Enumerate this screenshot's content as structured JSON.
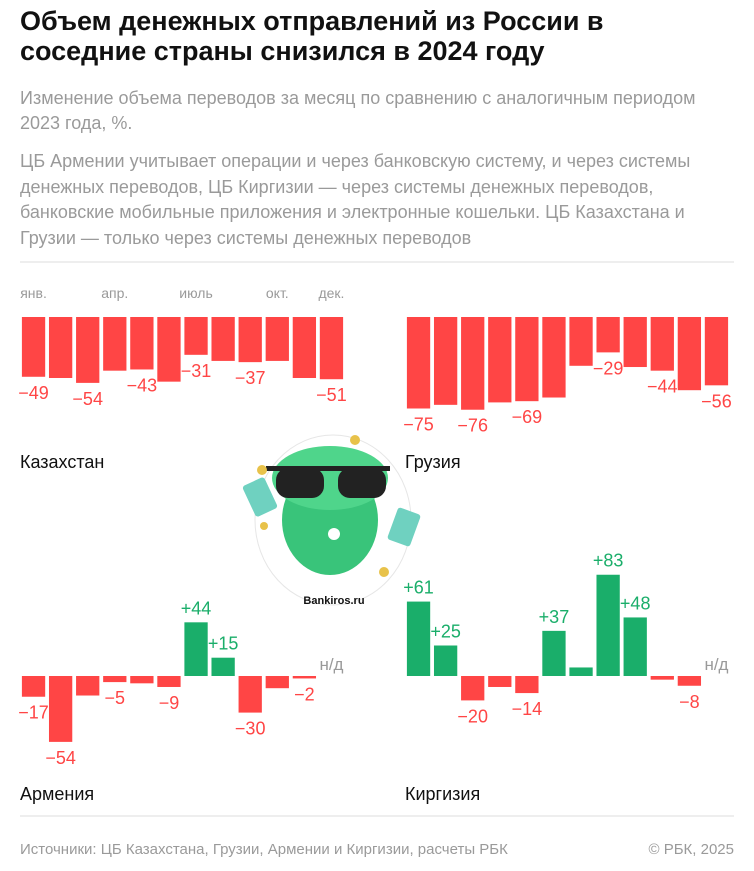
{
  "title": "Объем денежных отправлений из России в соседние страны снизился в 2024 году",
  "subtitle": "Изменение объема переводов за месяц по сравнению с аналогичным периодом 2023 года, %.",
  "note": "ЦБ Армении учитывает операции и через банковскую систему, и через системы денежных переводов, ЦБ Киргизии — через системы денежных переводов, банковские мобильные приложения и электронные кошельки. ЦБ Казахстана и Грузии — только через системы денежных переводов",
  "source": "Источники: ЦБ Казахстана, Грузии, Армении и Киргизии, расчеты РБК",
  "copyright": "© РБК, 2025",
  "watermark": "Bankiros.ru",
  "chart_data": [
    {
      "type": "bar",
      "name": "Казахстан",
      "categories": [
        "янв.",
        null,
        null,
        "апр.",
        null,
        null,
        "июль",
        null,
        null,
        "окт.",
        null,
        "дек."
      ],
      "values": [
        -49,
        -50,
        -54,
        -44,
        -43,
        -53,
        -31,
        -36,
        -37,
        -36,
        -50,
        -51
      ],
      "value_labels": [
        "−49",
        null,
        "−54",
        null,
        "−43",
        null,
        "−31",
        null,
        "−37",
        null,
        null,
        "−51"
      ],
      "colors": {
        "negative": "#ff4545",
        "positive": "#1aae6a"
      }
    },
    {
      "type": "bar",
      "name": "Грузия",
      "values": [
        -75,
        -72,
        -76,
        -70,
        -69,
        -66,
        -40,
        -29,
        -41,
        -44,
        -60,
        -56
      ],
      "value_labels": [
        "−75",
        null,
        "−76",
        null,
        "−69",
        null,
        null,
        "−29",
        null,
        "−44",
        null,
        "−56"
      ],
      "colors": {
        "negative": "#ff4545",
        "positive": "#1aae6a"
      }
    },
    {
      "type": "bar",
      "name": "Армения",
      "values": [
        -17,
        -54,
        -16,
        -5,
        -6,
        -9,
        44,
        15,
        -30,
        -10,
        -2,
        null
      ],
      "value_labels": [
        "−17",
        "−54",
        null,
        "−5",
        null,
        "−9",
        "+44",
        "+15",
        "−30",
        null,
        "−2",
        "н/д"
      ],
      "colors": {
        "negative": "#ff4545",
        "positive": "#1aae6a"
      }
    },
    {
      "type": "bar",
      "name": "Киргизия",
      "values": [
        61,
        25,
        -20,
        -9,
        -14,
        37,
        7,
        83,
        48,
        -3,
        -8,
        null
      ],
      "value_labels": [
        "+61",
        "+25",
        "−20",
        null,
        "−14",
        "+37",
        null,
        "+83",
        "+48",
        null,
        "−8",
        "н/д"
      ],
      "colors": {
        "negative": "#ff4545",
        "positive": "#1aae6a"
      }
    }
  ]
}
